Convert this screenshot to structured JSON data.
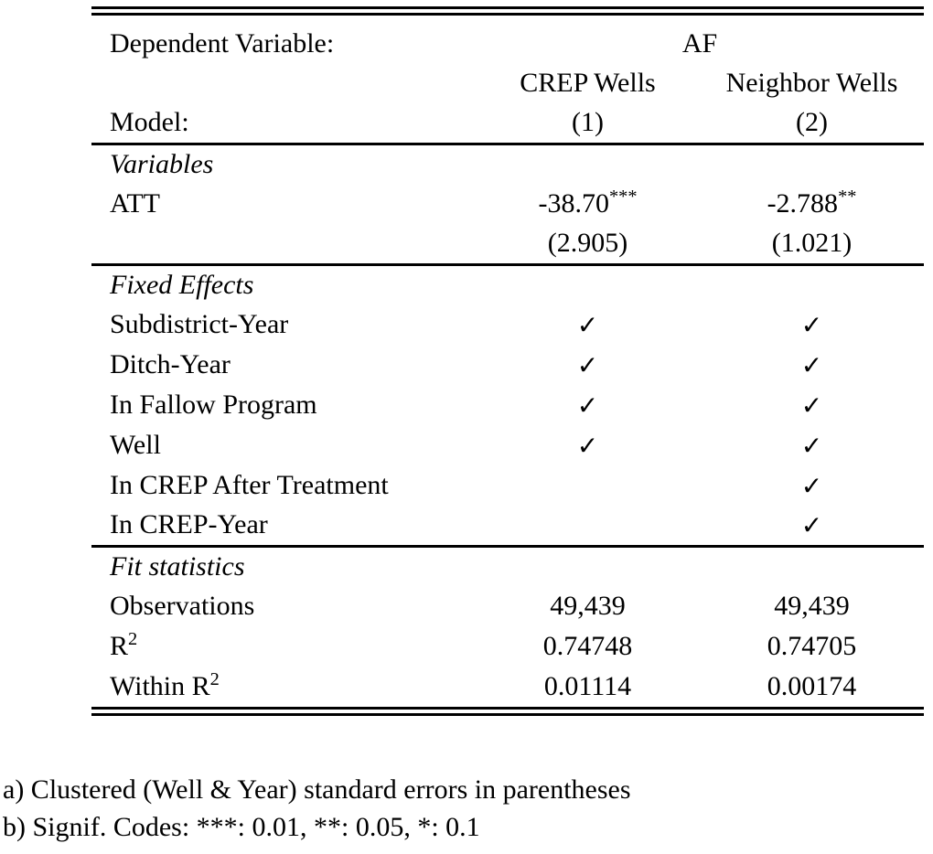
{
  "colors": {
    "text": "#000000",
    "rules": "#000000",
    "background": "#ffffff"
  },
  "table": {
    "header": {
      "dependent_variable_label": "Dependent Variable:",
      "dependent_variable_value": "AF",
      "column_group_labels": [
        "CREP Wells",
        "Neighbor Wells"
      ],
      "model_label": "Model:",
      "model_numbers": [
        "(1)",
        "(2)"
      ]
    },
    "variables_section": {
      "title": "Variables",
      "att_label": "ATT",
      "estimates": [
        {
          "value": "-38.70",
          "stars": "***"
        },
        {
          "value": "-2.788",
          "stars": "**"
        }
      ],
      "std_errors": [
        "(2.905)",
        "(1.021)"
      ]
    },
    "fixed_effects_section": {
      "title": "Fixed Effects",
      "rows": [
        {
          "label": "Subdistrict-Year",
          "cols": [
            "✓",
            "✓"
          ]
        },
        {
          "label": "Ditch-Year",
          "cols": [
            "✓",
            "✓"
          ]
        },
        {
          "label": "In Fallow Program",
          "cols": [
            "✓",
            "✓"
          ]
        },
        {
          "label": "Well",
          "cols": [
            "✓",
            "✓"
          ]
        },
        {
          "label": "In CREP After Treatment",
          "cols": [
            "",
            "✓"
          ]
        },
        {
          "label": "In CREP-Year",
          "cols": [
            "",
            "✓"
          ]
        }
      ]
    },
    "fit_statistics_section": {
      "title": "Fit statistics",
      "rows": [
        {
          "label": "Observations",
          "sup": "",
          "cols": [
            "49,439",
            "49,439"
          ]
        },
        {
          "label": "R",
          "sup": "2",
          "cols": [
            "0.74748",
            "0.74705"
          ]
        },
        {
          "label": "Within R",
          "sup": "2",
          "cols": [
            "0.01114",
            "0.00174"
          ]
        }
      ]
    }
  },
  "footnotes": [
    "a) Clustered (Well & Year) standard errors in parentheses",
    "b) Signif. Codes: ***: 0.01, **: 0.05, *: 0.1"
  ]
}
